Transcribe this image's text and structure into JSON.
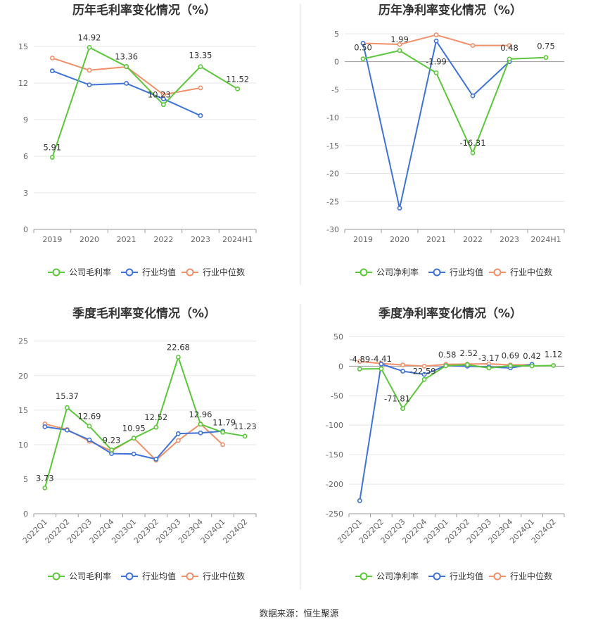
{
  "source": "数据来源：恒生聚源",
  "colors": {
    "company": "#5cc63a",
    "avg": "#3f73d8",
    "median": "#f0906a"
  },
  "chart_data": [
    {
      "type": "line",
      "title": "历年毛利率变化情况（%）",
      "categories": [
        "2019",
        "2020",
        "2021",
        "2022",
        "2023",
        "2024H1"
      ],
      "ylim": [
        0,
        16.5
      ],
      "yticks": [
        0,
        3,
        6,
        9,
        12,
        15
      ],
      "grid": true,
      "legend_placement": "bottom",
      "series": [
        {
          "name": "公司毛利率",
          "key": "company",
          "values": [
            5.91,
            14.92,
            13.36,
            10.23,
            13.35,
            11.52
          ],
          "labels": [
            "5.91",
            "14.92",
            "13.36",
            "10.23",
            "13.35",
            "11.52"
          ]
        },
        {
          "name": "行业均值",
          "key": "avg",
          "values": [
            13.0,
            11.85,
            11.97,
            10.7,
            9.33,
            null
          ]
        },
        {
          "name": "行业中位数",
          "key": "median",
          "values": [
            14.05,
            13.05,
            13.33,
            11.05,
            11.6,
            null
          ]
        }
      ]
    },
    {
      "type": "line",
      "title": "历年净利率变化情况（%）",
      "categories": [
        "2019",
        "2020",
        "2021",
        "2022",
        "2023",
        "2024H1"
      ],
      "ylim": [
        -30,
        6
      ],
      "yticks": [
        -30,
        -25,
        -20,
        -15,
        -10,
        -5,
        0,
        5
      ],
      "grid": true,
      "legend_placement": "bottom",
      "series": [
        {
          "name": "公司净利率",
          "key": "company",
          "values": [
            0.5,
            1.99,
            -1.99,
            -16.31,
            0.48,
            0.75
          ],
          "labels": [
            "0.50",
            "1.99",
            "-1.99",
            "-16.31",
            "0.48",
            "0.75"
          ]
        },
        {
          "name": "行业均值",
          "key": "avg",
          "values": [
            3.3,
            -26.2,
            3.7,
            -6.1,
            0.0,
            null
          ]
        },
        {
          "name": "行业中位数",
          "key": "median",
          "values": [
            3.3,
            3.1,
            4.8,
            2.9,
            2.9,
            null
          ]
        }
      ]
    },
    {
      "type": "line",
      "title": "季度毛利率变化情况（%）",
      "categories": [
        "2022Q1",
        "2022Q2",
        "2022Q3",
        "2022Q4",
        "2023Q1",
        "2023Q2",
        "2023Q3",
        "2023Q4",
        "2024Q1",
        "2024Q2"
      ],
      "ylim": [
        0,
        26.5
      ],
      "yticks": [
        0,
        5,
        10,
        15,
        20,
        25
      ],
      "grid": true,
      "legend_placement": "bottom",
      "series": [
        {
          "name": "公司毛利率",
          "key": "company",
          "values": [
            3.73,
            15.37,
            12.69,
            9.23,
            10.95,
            12.52,
            22.68,
            12.96,
            11.79,
            11.23
          ],
          "labels": [
            "3.73",
            "15.37",
            "12.69",
            "9.23",
            "10.95",
            "12.52",
            "22.68",
            "12.96",
            "11.79",
            "11.23"
          ]
        },
        {
          "name": "行业均值",
          "key": "avg",
          "values": [
            12.6,
            12.1,
            10.7,
            8.7,
            8.65,
            7.9,
            11.6,
            11.7,
            11.95,
            null
          ]
        },
        {
          "name": "行业中位数",
          "key": "median",
          "values": [
            13.0,
            12.2,
            10.5,
            9.1,
            10.95,
            7.75,
            10.6,
            13.0,
            10.0,
            null
          ]
        }
      ]
    },
    {
      "type": "line",
      "title": "季度净利率变化情况（%）",
      "categories": [
        "2022Q1",
        "2022Q2",
        "2022Q3",
        "2022Q4",
        "2023Q1",
        "2023Q2",
        "2023Q3",
        "2023Q4",
        "2024Q1",
        "2024Q2"
      ],
      "ylim": [
        -250,
        60
      ],
      "yticks": [
        -250,
        -200,
        -150,
        -100,
        -50,
        0,
        50
      ],
      "grid": true,
      "legend_placement": "bottom",
      "series": [
        {
          "name": "公司净利率",
          "key": "company",
          "values": [
            -4.89,
            -4.41,
            -71.81,
            -22.59,
            0.58,
            2.52,
            -3.17,
            0.69,
            0.42,
            1.12
          ],
          "labels": [
            "-4.89",
            "-4.41",
            "-71.81",
            "-22.59",
            "0.58",
            "2.52",
            "-3.17",
            "0.69",
            "0.42",
            "1.12"
          ]
        },
        {
          "name": "行业均值",
          "key": "avg",
          "values": [
            -228.0,
            3.5,
            -8.5,
            -14.0,
            0.8,
            0.0,
            -1.5,
            -3.0,
            3.0,
            null
          ]
        },
        {
          "name": "行业中位数",
          "key": "median",
          "values": [
            8.0,
            4.5,
            2.0,
            0.0,
            3.0,
            3.5,
            4.0,
            2.0,
            2.5,
            null
          ]
        }
      ]
    }
  ]
}
